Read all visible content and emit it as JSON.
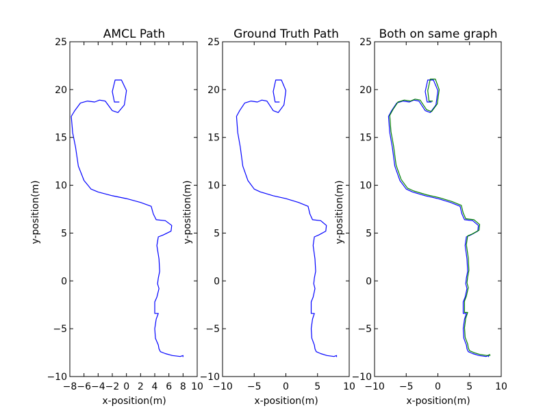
{
  "chart_data": [
    {
      "type": "line",
      "title": "AMCL Path",
      "xlabel": "x-position(m)",
      "ylabel": "y-position(m)",
      "xlim": [
        -8,
        10
      ],
      "ylim": [
        -10,
        25
      ],
      "xticks": [
        -8,
        -6,
        -4,
        -2,
        0,
        2,
        4,
        6,
        8,
        10
      ],
      "yticks": [
        -10,
        -5,
        0,
        5,
        10,
        15,
        20,
        25
      ],
      "grid": false,
      "series": [
        {
          "color": "#0000ff",
          "x": [
            -1.0,
            -1.7,
            -2.0,
            -1.6,
            -0.7,
            0.0,
            -0.3,
            -1.2,
            -2.0,
            -3.0,
            -3.8,
            -4.5,
            -5.5,
            -6.5,
            -7.3,
            -7.8,
            -7.6,
            -7.2,
            -6.8,
            -6.0,
            -5.0,
            -4.0,
            -2.0,
            0.0,
            2.0,
            3.5,
            3.8,
            4.2,
            5.5,
            6.4,
            6.3,
            5.2,
            4.5,
            4.3,
            4.6,
            4.7,
            4.5,
            4.4,
            4.6,
            4.3,
            4.0,
            4.0,
            4.5,
            4.2,
            4.0,
            4.1,
            4.5,
            4.6,
            4.8,
            5.5,
            6.5,
            7.6,
            8.0,
            8.0
          ],
          "y": [
            18.7,
            18.7,
            19.8,
            21.0,
            21.0,
            19.9,
            18.4,
            17.6,
            17.8,
            18.8,
            18.9,
            18.7,
            18.8,
            18.6,
            17.8,
            17.2,
            15.5,
            14.0,
            12.0,
            10.5,
            9.6,
            9.3,
            8.9,
            8.6,
            8.2,
            7.8,
            7.0,
            6.4,
            6.3,
            5.8,
            5.2,
            4.8,
            4.6,
            3.7,
            2.3,
            1.0,
            0.3,
            -0.3,
            -0.8,
            -1.7,
            -2.2,
            -3.4,
            -3.4,
            -4.0,
            -5.0,
            -6.0,
            -6.7,
            -7.1,
            -7.4,
            -7.6,
            -7.8,
            -7.9,
            -7.8,
            -7.95
          ]
        }
      ]
    },
    {
      "type": "line",
      "title": "Ground Truth Path",
      "xlabel": "x-position(m)",
      "ylabel": "y-position(m)",
      "xlim": [
        -10,
        10
      ],
      "ylim": [
        -10,
        25
      ],
      "xticks": [
        -10,
        -5,
        0,
        5,
        10
      ],
      "yticks": [
        -10,
        -5,
        0,
        5,
        10,
        15,
        20,
        25
      ],
      "grid": false,
      "series": [
        {
          "color": "#0000ff",
          "x": [
            -1.0,
            -1.7,
            -2.0,
            -1.6,
            -0.7,
            0.0,
            -0.3,
            -1.2,
            -2.0,
            -3.0,
            -3.8,
            -4.5,
            -5.5,
            -6.5,
            -7.3,
            -7.8,
            -7.6,
            -7.2,
            -6.8,
            -6.0,
            -5.0,
            -4.0,
            -2.0,
            0.0,
            2.0,
            3.5,
            3.8,
            4.2,
            5.5,
            6.4,
            6.3,
            5.2,
            4.5,
            4.3,
            4.6,
            4.7,
            4.5,
            4.4,
            4.6,
            4.3,
            4.0,
            4.0,
            4.5,
            4.2,
            4.0,
            4.1,
            4.5,
            4.6,
            4.8,
            5.5,
            6.5,
            7.6,
            8.0,
            8.0
          ],
          "y": [
            18.7,
            18.7,
            19.8,
            21.0,
            21.0,
            19.9,
            18.4,
            17.6,
            17.8,
            18.8,
            18.9,
            18.7,
            18.8,
            18.6,
            17.8,
            17.2,
            15.5,
            14.0,
            12.0,
            10.5,
            9.6,
            9.3,
            8.9,
            8.6,
            8.2,
            7.8,
            7.0,
            6.4,
            6.3,
            5.8,
            5.2,
            4.8,
            4.6,
            3.7,
            2.3,
            1.0,
            0.3,
            -0.3,
            -0.8,
            -1.7,
            -2.2,
            -3.4,
            -3.4,
            -4.0,
            -5.0,
            -6.0,
            -6.7,
            -7.1,
            -7.4,
            -7.6,
            -7.8,
            -7.9,
            -7.8,
            -7.95
          ]
        }
      ]
    },
    {
      "type": "line",
      "title": "Both on same graph",
      "xlabel": "x-position(m)",
      "ylabel": "y-position(m)",
      "xlim": [
        -10,
        10
      ],
      "ylim": [
        -10,
        25
      ],
      "xticks": [
        -10,
        -5,
        0,
        5,
        10
      ],
      "yticks": [
        -10,
        -5,
        0,
        5,
        10,
        15,
        20,
        25
      ],
      "grid": false,
      "series": [
        {
          "color": "#0000ff",
          "x": [
            -1.0,
            -1.7,
            -2.0,
            -1.6,
            -0.7,
            0.0,
            -0.3,
            -1.2,
            -2.0,
            -3.0,
            -3.8,
            -4.5,
            -5.5,
            -6.5,
            -7.3,
            -7.8,
            -7.6,
            -7.2,
            -6.8,
            -6.0,
            -5.0,
            -4.0,
            -2.0,
            0.0,
            2.0,
            3.5,
            3.8,
            4.2,
            5.5,
            6.4,
            6.3,
            5.2,
            4.5,
            4.3,
            4.6,
            4.7,
            4.5,
            4.4,
            4.6,
            4.3,
            4.0,
            4.0,
            4.5,
            4.2,
            4.0,
            4.1,
            4.5,
            4.6,
            4.8,
            5.5,
            6.5,
            7.6,
            8.0,
            8.0
          ],
          "y": [
            18.7,
            18.7,
            19.8,
            21.0,
            21.0,
            19.9,
            18.4,
            17.6,
            17.8,
            18.8,
            18.9,
            18.7,
            18.8,
            18.6,
            17.8,
            17.2,
            15.5,
            14.0,
            12.0,
            10.5,
            9.6,
            9.3,
            8.9,
            8.6,
            8.2,
            7.8,
            7.0,
            6.4,
            6.3,
            5.8,
            5.2,
            4.8,
            4.6,
            3.7,
            2.3,
            1.0,
            0.3,
            -0.3,
            -0.8,
            -1.7,
            -2.2,
            -3.4,
            -3.4,
            -4.0,
            -5.0,
            -6.0,
            -6.7,
            -7.1,
            -7.4,
            -7.6,
            -7.8,
            -7.9,
            -7.8,
            -7.95
          ]
        },
        {
          "color": "#008000",
          "x": [
            -0.8,
            -1.4,
            -1.6,
            -1.2,
            -0.4,
            0.2,
            -0.1,
            -1.0,
            -1.8,
            -2.8,
            -3.6,
            -4.3,
            -5.3,
            -6.3,
            -7.1,
            -7.6,
            -7.4,
            -7.0,
            -6.6,
            -5.8,
            -4.8,
            -3.8,
            -1.8,
            0.2,
            2.2,
            3.7,
            4.0,
            4.4,
            5.7,
            6.6,
            6.5,
            5.4,
            4.7,
            4.5,
            4.8,
            4.9,
            4.7,
            4.6,
            4.8,
            4.5,
            4.2,
            4.2,
            4.7,
            4.4,
            4.2,
            4.3,
            4.7,
            4.8,
            5.0,
            5.7,
            6.7,
            7.8,
            8.2,
            8.2
          ],
          "y": [
            18.8,
            18.8,
            19.9,
            21.1,
            21.1,
            20.0,
            18.5,
            17.7,
            17.9,
            18.9,
            19.0,
            18.8,
            18.9,
            18.7,
            17.9,
            17.3,
            15.6,
            14.1,
            12.1,
            10.6,
            9.7,
            9.4,
            9.0,
            8.7,
            8.3,
            7.9,
            7.1,
            6.5,
            6.4,
            5.9,
            5.3,
            4.9,
            4.7,
            3.8,
            2.4,
            1.1,
            0.4,
            -0.2,
            -0.7,
            -1.6,
            -2.1,
            -3.3,
            -3.3,
            -3.9,
            -4.9,
            -5.9,
            -6.6,
            -7.0,
            -7.3,
            -7.5,
            -7.7,
            -7.8,
            -7.7,
            -7.85
          ]
        }
      ]
    }
  ]
}
